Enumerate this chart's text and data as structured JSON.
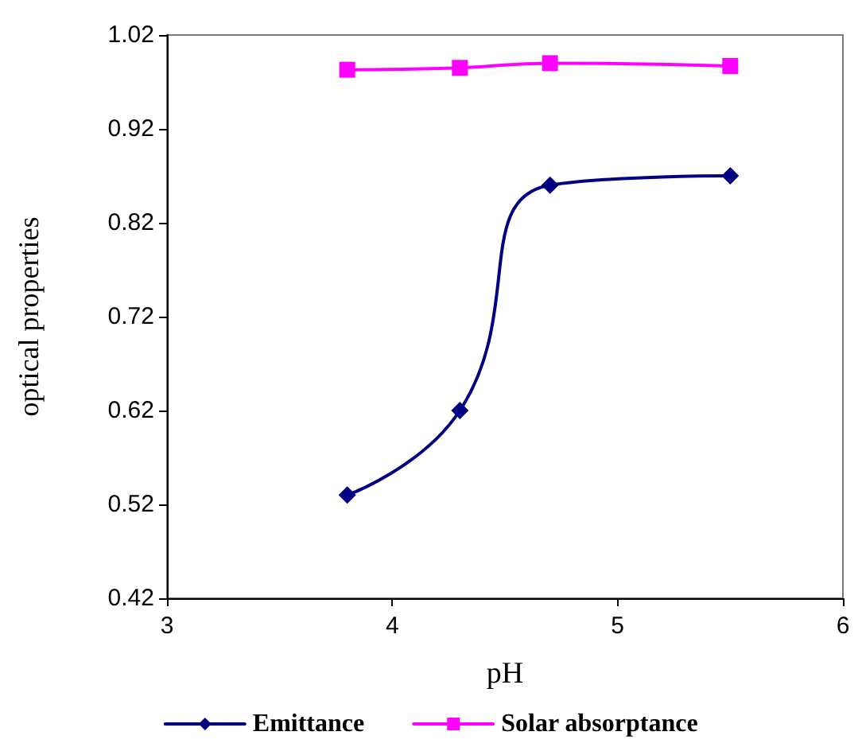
{
  "chart_data": {
    "type": "line",
    "xlabel": "pH",
    "ylabel": "optical properties",
    "x": [
      3.8,
      4.3,
      4.7,
      5.5
    ],
    "series": [
      {
        "name": "Emittance",
        "color": "#000080",
        "marker": "diamond",
        "values": [
          0.53,
          0.62,
          0.86,
          0.87
        ]
      },
      {
        "name": "Solar absorptance",
        "color": "#ff00ff",
        "marker": "square",
        "values": [
          0.983,
          0.985,
          0.99,
          0.987
        ]
      }
    ],
    "xlim": [
      3,
      6
    ],
    "xticks": [
      3,
      4,
      5,
      6
    ],
    "ylim": [
      0.42,
      1.02
    ],
    "yticks": [
      0.42,
      0.52,
      0.62,
      0.72,
      0.82,
      0.92,
      1.02
    ],
    "grid": false,
    "legend": "bottom",
    "line_style": "solid"
  }
}
